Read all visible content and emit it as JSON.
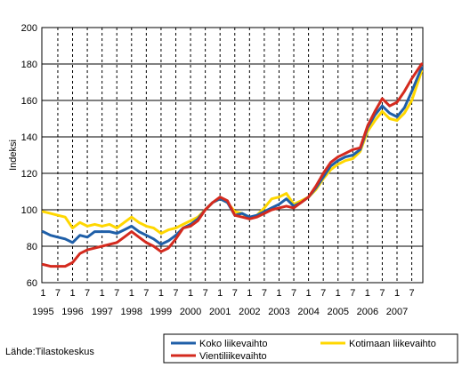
{
  "chart_data": {
    "type": "line",
    "ylabel": "Indeksi",
    "ylim": [
      60,
      200
    ],
    "yticks": [
      60,
      80,
      100,
      120,
      140,
      160,
      180,
      200
    ],
    "grid": true,
    "legend_position": "bottom-right",
    "x_start": "1995-01",
    "x_end": "2007-11",
    "month_tick_labels": [
      "1",
      "7"
    ],
    "years": [
      "1995",
      "1996",
      "1997",
      "1998",
      "1999",
      "2000",
      "2001",
      "2002",
      "2003",
      "2004",
      "2005",
      "2006",
      "2007"
    ],
    "series": [
      {
        "name": "Koko liikevaihto",
        "color": "#1f5fa8",
        "points": [
          [
            "1995-01",
            88
          ],
          [
            "1995-04",
            86
          ],
          [
            "1995-07",
            85
          ],
          [
            "1995-10",
            84
          ],
          [
            "1996-01",
            82
          ],
          [
            "1996-04",
            86
          ],
          [
            "1996-07",
            85
          ],
          [
            "1996-10",
            88
          ],
          [
            "1997-01",
            88
          ],
          [
            "1997-04",
            88
          ],
          [
            "1997-07",
            87
          ],
          [
            "1997-10",
            89
          ],
          [
            "1998-01",
            91
          ],
          [
            "1998-04",
            88
          ],
          [
            "1998-07",
            86
          ],
          [
            "1998-10",
            84
          ],
          [
            "1999-01",
            81
          ],
          [
            "1999-04",
            83
          ],
          [
            "1999-07",
            86
          ],
          [
            "1999-10",
            90
          ],
          [
            "2000-01",
            92
          ],
          [
            "2000-04",
            95
          ],
          [
            "2000-07",
            100
          ],
          [
            "2000-10",
            104
          ],
          [
            "2001-01",
            106
          ],
          [
            "2001-04",
            104
          ],
          [
            "2001-07",
            97
          ],
          [
            "2001-10",
            98
          ],
          [
            "2002-01",
            96
          ],
          [
            "2002-04",
            97
          ],
          [
            "2002-07",
            99
          ],
          [
            "2002-10",
            101
          ],
          [
            "2003-01",
            103
          ],
          [
            "2003-04",
            106
          ],
          [
            "2003-07",
            102
          ],
          [
            "2003-10",
            104
          ],
          [
            "2004-01",
            107
          ],
          [
            "2004-04",
            112
          ],
          [
            "2004-07",
            118
          ],
          [
            "2004-10",
            124
          ],
          [
            "2005-01",
            127
          ],
          [
            "2005-04",
            129
          ],
          [
            "2005-07",
            130
          ],
          [
            "2005-10",
            133
          ],
          [
            "2006-01",
            145
          ],
          [
            "2006-04",
            152
          ],
          [
            "2006-07",
            157
          ],
          [
            "2006-10",
            153
          ],
          [
            "2007-01",
            151
          ],
          [
            "2007-04",
            156
          ],
          [
            "2007-07",
            165
          ],
          [
            "2007-11",
            178
          ]
        ]
      },
      {
        "name": "Kotimaan liikevaihto",
        "color": "#ffd700",
        "points": [
          [
            "1995-01",
            99
          ],
          [
            "1995-04",
            98
          ],
          [
            "1995-07",
            97
          ],
          [
            "1995-10",
            96
          ],
          [
            "1996-01",
            90
          ],
          [
            "1996-04",
            93
          ],
          [
            "1996-07",
            91
          ],
          [
            "1996-10",
            92
          ],
          [
            "1997-01",
            91
          ],
          [
            "1997-04",
            92
          ],
          [
            "1997-07",
            90
          ],
          [
            "1997-10",
            93
          ],
          [
            "1998-01",
            96
          ],
          [
            "1998-04",
            93
          ],
          [
            "1998-07",
            91
          ],
          [
            "1998-10",
            90
          ],
          [
            "1999-01",
            87
          ],
          [
            "1999-04",
            89
          ],
          [
            "1999-07",
            90
          ],
          [
            "1999-10",
            92
          ],
          [
            "2000-01",
            94
          ],
          [
            "2000-04",
            96
          ],
          [
            "2000-07",
            100
          ],
          [
            "2000-10",
            104
          ],
          [
            "2001-01",
            106
          ],
          [
            "2001-04",
            104
          ],
          [
            "2001-07",
            99
          ],
          [
            "2001-10",
            98
          ],
          [
            "2002-01",
            95
          ],
          [
            "2002-04",
            97
          ],
          [
            "2002-07",
            101
          ],
          [
            "2002-10",
            106
          ],
          [
            "2003-01",
            107
          ],
          [
            "2003-04",
            109
          ],
          [
            "2003-07",
            103
          ],
          [
            "2003-10",
            105
          ],
          [
            "2004-01",
            107
          ],
          [
            "2004-04",
            111
          ],
          [
            "2004-07",
            117
          ],
          [
            "2004-10",
            122
          ],
          [
            "2005-01",
            125
          ],
          [
            "2005-04",
            127
          ],
          [
            "2005-07",
            128
          ],
          [
            "2005-10",
            132
          ],
          [
            "2006-01",
            143
          ],
          [
            "2006-04",
            149
          ],
          [
            "2006-07",
            154
          ],
          [
            "2006-10",
            150
          ],
          [
            "2007-01",
            149
          ],
          [
            "2007-04",
            153
          ],
          [
            "2007-07",
            160
          ],
          [
            "2007-11",
            176
          ]
        ]
      },
      {
        "name": "Vientiliikevaihto",
        "color": "#d42a1e",
        "points": [
          [
            "1995-01",
            70
          ],
          [
            "1995-04",
            69
          ],
          [
            "1995-07",
            69
          ],
          [
            "1995-10",
            69
          ],
          [
            "1996-01",
            71
          ],
          [
            "1996-04",
            76
          ],
          [
            "1996-07",
            78
          ],
          [
            "1996-10",
            79
          ],
          [
            "1997-01",
            80
          ],
          [
            "1997-04",
            81
          ],
          [
            "1997-07",
            82
          ],
          [
            "1997-10",
            85
          ],
          [
            "1998-01",
            88
          ],
          [
            "1998-04",
            85
          ],
          [
            "1998-07",
            82
          ],
          [
            "1998-10",
            80
          ],
          [
            "1999-01",
            77
          ],
          [
            "1999-04",
            79
          ],
          [
            "1999-07",
            84
          ],
          [
            "1999-10",
            90
          ],
          [
            "2000-01",
            91
          ],
          [
            "2000-04",
            94
          ],
          [
            "2000-07",
            100
          ],
          [
            "2000-10",
            104
          ],
          [
            "2001-01",
            107
          ],
          [
            "2001-04",
            105
          ],
          [
            "2001-07",
            97
          ],
          [
            "2001-10",
            96
          ],
          [
            "2002-01",
            95
          ],
          [
            "2002-04",
            96
          ],
          [
            "2002-07",
            98
          ],
          [
            "2002-10",
            100
          ],
          [
            "2003-01",
            101
          ],
          [
            "2003-04",
            102
          ],
          [
            "2003-07",
            101
          ],
          [
            "2003-10",
            104
          ],
          [
            "2004-01",
            107
          ],
          [
            "2004-04",
            113
          ],
          [
            "2004-07",
            120
          ],
          [
            "2004-10",
            126
          ],
          [
            "2005-01",
            129
          ],
          [
            "2005-04",
            131
          ],
          [
            "2005-07",
            133
          ],
          [
            "2005-10",
            134
          ],
          [
            "2006-01",
            146
          ],
          [
            "2006-04",
            154
          ],
          [
            "2006-07",
            161
          ],
          [
            "2006-10",
            157
          ],
          [
            "2007-01",
            159
          ],
          [
            "2007-04",
            165
          ],
          [
            "2007-07",
            172
          ],
          [
            "2007-11",
            180
          ]
        ]
      }
    ]
  },
  "source_text": "Lähde:Tilastokeskus"
}
